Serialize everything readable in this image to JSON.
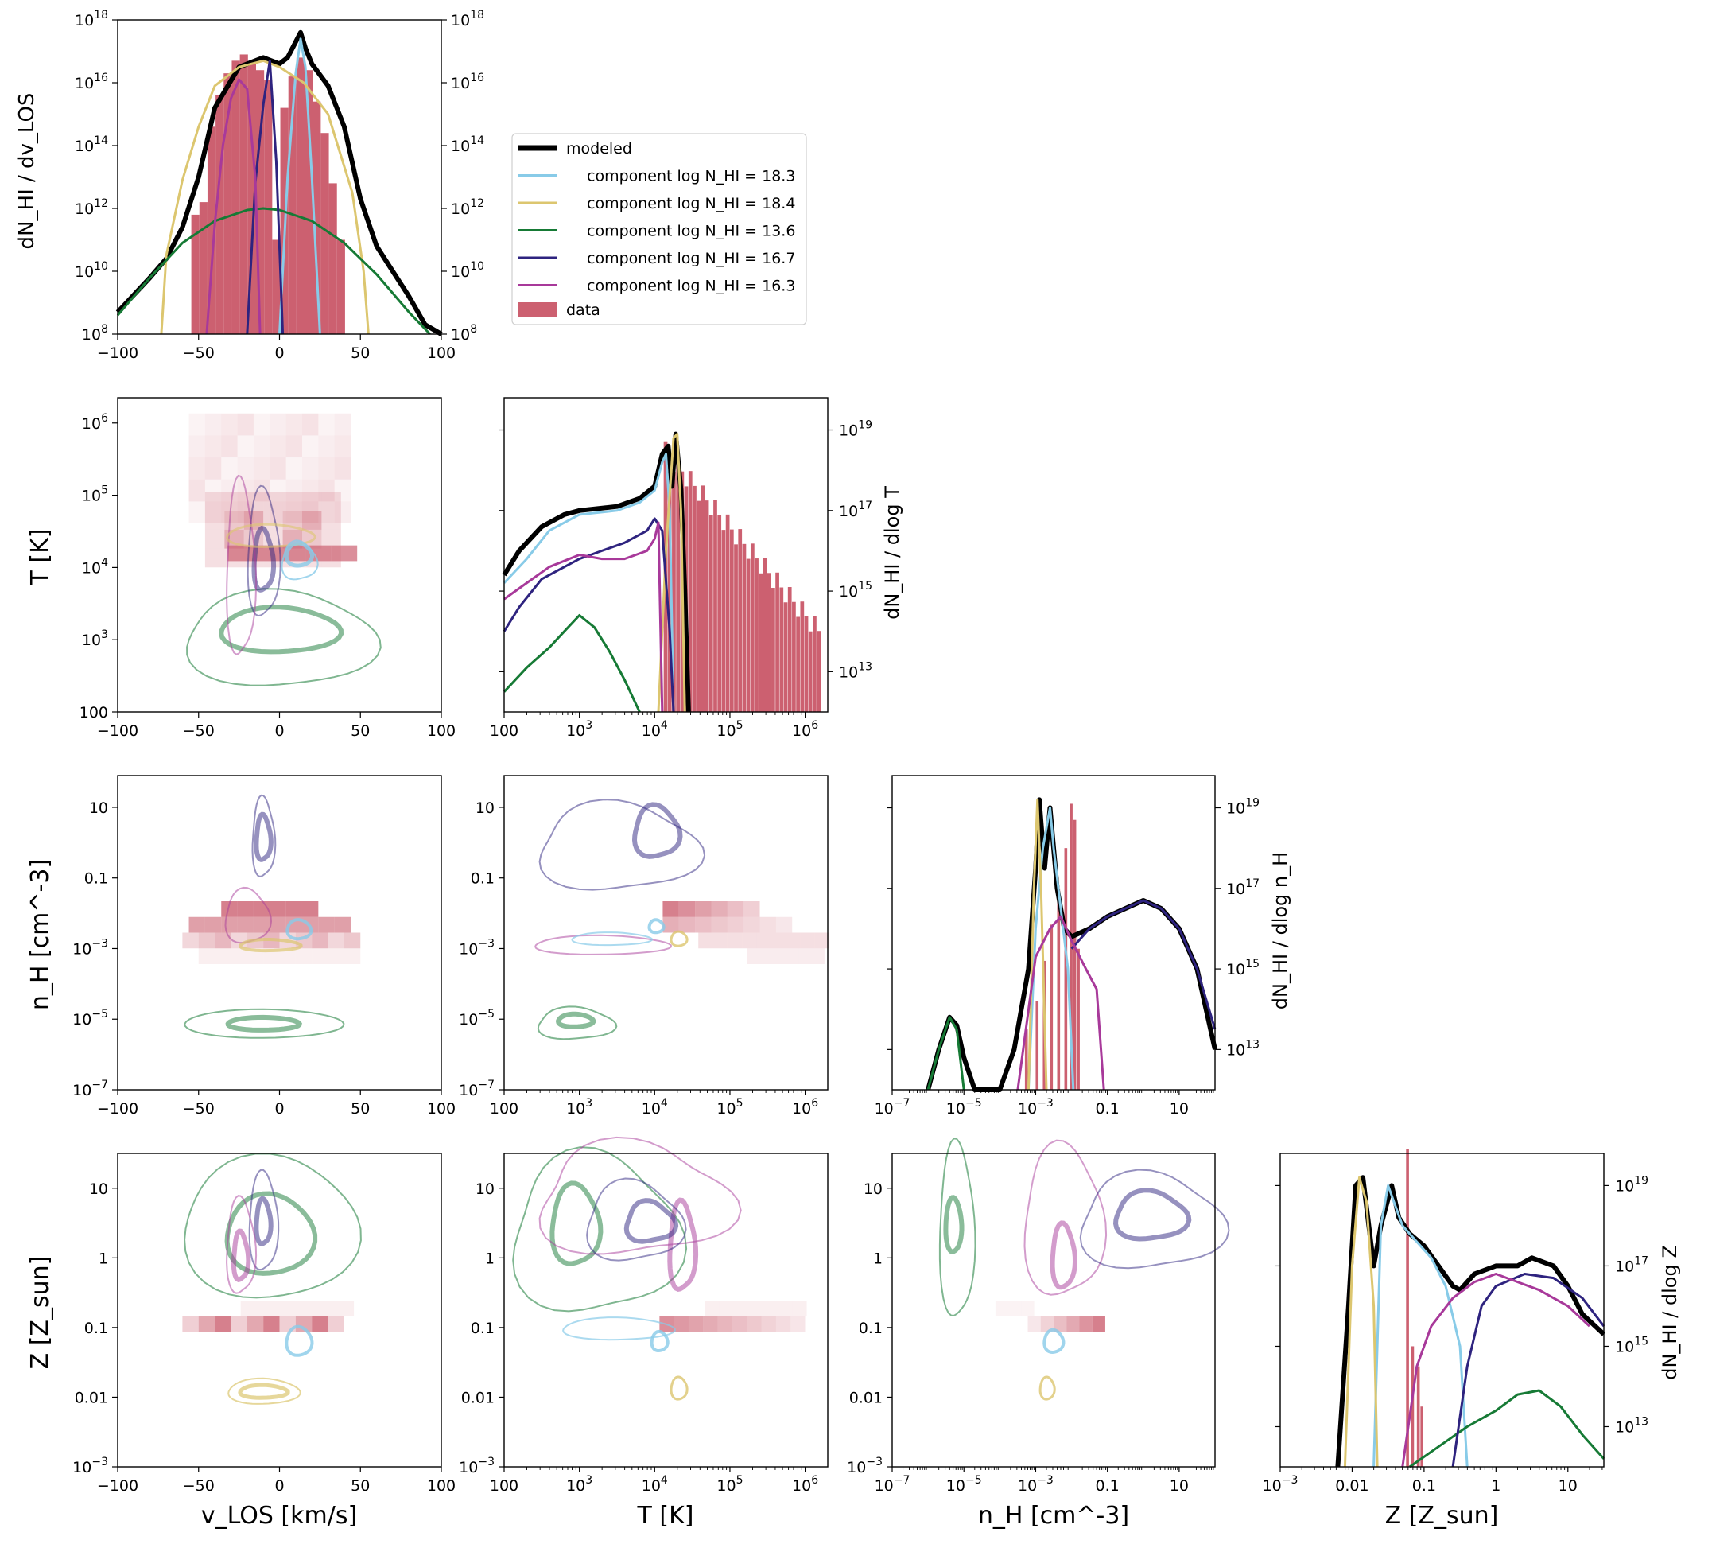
{
  "colors": {
    "modeled": "#000000",
    "comp1": "#88cbe8",
    "comp2": "#dcc66f",
    "comp3": "#167a35",
    "comp4": "#2e237f",
    "comp5": "#a8399a",
    "data": "#cc6070"
  },
  "legend": {
    "modeled": "modeled",
    "comp1": "component log N_HI = 18.3",
    "comp2": "component log N_HI = 18.4",
    "comp3": "component log N_HI = 13.6",
    "comp4": "component log N_HI = 16.7",
    "comp5": "component log N_HI = 16.3",
    "data": "data"
  },
  "axis_labels": {
    "dNdv": "dN_HI / dv_LOS",
    "dNdT": "dN_HI / dlog T",
    "dNdn": "dN_HI / dlog n_H",
    "dNdZ": "dN_HI / dlog Z",
    "T": "T [K]",
    "nH": "n_H [cm^-3]",
    "Z": "Z [Z_sun]",
    "vlos": "v_LOS [km/s]"
  },
  "chart_data": [
    {
      "type": "line",
      "panel": "v_LOS histogram",
      "xlim": [
        -100,
        100
      ],
      "ylim_log10": [
        8,
        18
      ],
      "x_ticks": [
        "-100",
        "-50",
        "0",
        "50",
        "100"
      ],
      "y_ticks": [
        "10^8",
        "10^10",
        "10^12",
        "10^14",
        "10^16",
        "10^18"
      ],
      "series": [
        {
          "name": "modeled",
          "x": [
            -100,
            -80,
            -70,
            -60,
            -50,
            -40,
            -25,
            -10,
            0,
            5,
            10,
            13,
            16,
            20,
            30,
            40,
            50,
            60,
            70,
            80,
            90,
            100
          ],
          "log_y": [
            8.7,
            9.8,
            10.4,
            11.4,
            13.0,
            15.2,
            16.5,
            16.8,
            16.6,
            16.8,
            17.3,
            17.6,
            17.1,
            16.6,
            15.9,
            14.6,
            12.3,
            10.8,
            10.0,
            9.2,
            8.3,
            7.6
          ]
        },
        {
          "name": "component log N_HI = 18.3",
          "x": [
            0,
            5,
            10,
            13,
            16,
            20,
            25
          ],
          "log_y": [
            8.0,
            13.0,
            16.3,
            17.4,
            16.5,
            13.0,
            8.0
          ]
        },
        {
          "name": "component log N_HI = 18.4",
          "x": [
            -73,
            -70,
            -60,
            -50,
            -40,
            -25,
            -10,
            0,
            15,
            30,
            45,
            52,
            55
          ],
          "log_y": [
            8.0,
            10.5,
            12.9,
            14.6,
            15.9,
            16.5,
            16.7,
            16.5,
            16.0,
            15.0,
            12.5,
            10.0,
            8.0
          ]
        },
        {
          "name": "component log N_HI = 13.6",
          "x": [
            -100,
            -80,
            -60,
            -40,
            -20,
            -10,
            0,
            20,
            40,
            60,
            80,
            93
          ],
          "log_y": [
            8.6,
            9.8,
            10.9,
            11.6,
            11.95,
            12.0,
            11.95,
            11.6,
            10.9,
            9.9,
            8.7,
            8.0
          ]
        },
        {
          "name": "component log N_HI = 16.7",
          "x": [
            -20,
            -15,
            -10,
            -6,
            -2,
            2
          ],
          "log_y": [
            8.0,
            12.8,
            15.3,
            16.7,
            13.5,
            8.0
          ]
        },
        {
          "name": "component log N_HI = 16.3",
          "x": [
            -45,
            -40,
            -35,
            -30,
            -25,
            -20,
            -15,
            -12
          ],
          "log_y": [
            8.0,
            11.5,
            14.0,
            15.5,
            16.1,
            15.8,
            13.0,
            8.0
          ]
        }
      ],
      "data_hist": {
        "name": "data",
        "x": [
          -52,
          -47,
          -42,
          -37,
          -32,
          -27,
          -22,
          -17,
          -12,
          -7,
          -2,
          3,
          8,
          13,
          18,
          23,
          28,
          33,
          38
        ],
        "log_y": [
          11.8,
          12.2,
          14.6,
          15.6,
          16.3,
          16.7,
          16.9,
          16.6,
          16.4,
          16.1,
          11.0,
          15.2,
          16.2,
          16.8,
          16.4,
          15.4,
          14.4,
          12.8,
          11.0
        ]
      }
    },
    {
      "type": "line",
      "panel": "T histogram",
      "xlim_log10": [
        2,
        6.3
      ],
      "ylim_log10": [
        12,
        19.8
      ],
      "x_ticks": [
        "100",
        "10^3",
        "10^4",
        "10^5",
        "10^6"
      ],
      "y_ticks": [
        "10^13",
        "10^15",
        "10^17",
        "10^19"
      ],
      "series": [
        {
          "name": "modeled",
          "log_x": [
            2.0,
            2.2,
            2.5,
            2.8,
            3.0,
            3.5,
            3.8,
            4.0,
            4.1,
            4.18,
            4.23,
            4.28,
            4.35,
            4.4,
            4.45
          ],
          "log_y": [
            15.4,
            16.0,
            16.6,
            16.9,
            17.0,
            17.1,
            17.3,
            17.6,
            18.4,
            18.6,
            17.6,
            18.9,
            17.5,
            15.0,
            12.0
          ]
        },
        {
          "name": "component log N_HI = 18.3",
          "log_x": [
            2.0,
            2.3,
            2.6,
            3.0,
            3.5,
            3.8,
            4.0,
            4.1,
            4.15,
            4.2,
            4.25
          ],
          "log_y": [
            15.2,
            15.8,
            16.5,
            16.9,
            17.0,
            17.2,
            17.5,
            18.2,
            18.4,
            17.0,
            12.0
          ]
        },
        {
          "name": "component log N_HI = 18.4",
          "log_x": [
            4.05,
            4.15,
            4.25,
            4.3,
            4.35,
            4.4
          ],
          "log_y": [
            12.0,
            16.0,
            18.8,
            18.9,
            17.0,
            12.0
          ]
        },
        {
          "name": "component log N_HI = 13.6",
          "log_x": [
            2.0,
            2.3,
            2.6,
            2.8,
            3.0,
            3.2,
            3.4,
            3.6,
            3.8
          ],
          "log_y": [
            12.5,
            13.1,
            13.6,
            14.0,
            14.4,
            14.1,
            13.5,
            12.8,
            12.0
          ]
        },
        {
          "name": "component log N_HI = 16.7",
          "log_x": [
            2.0,
            2.2,
            2.5,
            2.8,
            3.0,
            3.3,
            3.6,
            3.9,
            4.0,
            4.1,
            4.2,
            4.25
          ],
          "log_y": [
            14.0,
            14.6,
            15.3,
            15.6,
            15.8,
            16.0,
            16.2,
            16.5,
            16.8,
            16.5,
            14.0,
            12.0
          ]
        },
        {
          "name": "component log N_HI = 16.3",
          "log_x": [
            2.0,
            2.3,
            2.6,
            3.0,
            3.3,
            3.6,
            3.9,
            4.0,
            4.05,
            4.1
          ],
          "log_y": [
            14.8,
            15.2,
            15.6,
            15.9,
            15.8,
            15.8,
            16.0,
            16.3,
            16.7,
            12.0
          ]
        }
      ]
    },
    {
      "type": "line",
      "panel": "n_H histogram",
      "xlim_log10": [
        -7,
        2
      ],
      "ylim_log10": [
        12,
        19.8
      ],
      "x_ticks": [
        "10^-7",
        "10^-5",
        "10^-3",
        "0.1",
        "10"
      ],
      "y_ticks": [
        "10^13",
        "10^15",
        "10^17",
        "10^19"
      ],
      "series": [
        {
          "name": "modeled",
          "log_x": [
            -6.0,
            -5.7,
            -5.4,
            -5.2,
            -5.0,
            -4.7,
            -4.4,
            -4.0,
            -3.6,
            -3.2,
            -3.0,
            -2.9,
            -2.75,
            -2.6,
            -2.4,
            -2.2,
            -2.0,
            -1.5,
            -1.0,
            -0.5,
            0.0,
            0.5,
            1.0,
            1.5,
            2.0
          ],
          "log_y": [
            12.0,
            13.0,
            13.8,
            13.6,
            12.8,
            12.0,
            12.0,
            12.0,
            13.0,
            15.0,
            17.5,
            19.2,
            17.5,
            19.0,
            17.0,
            16.0,
            15.8,
            16.0,
            16.3,
            16.5,
            16.7,
            16.5,
            16.0,
            15.0,
            13.0
          ]
        },
        {
          "name": "component log N_HI = 18.3",
          "log_x": [
            -3.2,
            -3.0,
            -2.8,
            -2.6,
            -2.5,
            -2.3,
            -2.1,
            -1.95
          ],
          "log_y": [
            12.0,
            16.0,
            18.0,
            19.0,
            18.0,
            16.5,
            15.0,
            12.0
          ]
        },
        {
          "name": "component log N_HI = 18.4",
          "log_x": [
            -3.2,
            -3.05,
            -2.95,
            -2.85,
            -2.7
          ],
          "log_y": [
            12.0,
            17.0,
            19.2,
            17.0,
            12.0
          ]
        },
        {
          "name": "component log N_HI = 13.6",
          "log_x": [
            -6.0,
            -5.7,
            -5.4,
            -5.2,
            -5.0
          ],
          "log_y": [
            12.0,
            13.0,
            13.8,
            13.5,
            12.0
          ]
        },
        {
          "name": "component log N_HI = 16.7",
          "log_x": [
            -2.0,
            -1.5,
            -1.0,
            -0.5,
            0.0,
            0.5,
            1.0,
            1.5,
            2.0
          ],
          "log_y": [
            15.5,
            16.0,
            16.3,
            16.5,
            16.7,
            16.5,
            16.0,
            15.0,
            13.5
          ]
        },
        {
          "name": "component log N_HI = 16.3",
          "log_x": [
            -3.5,
            -3.0,
            -2.6,
            -2.3,
            -2.0,
            -1.6,
            -1.3,
            -1.1
          ],
          "log_y": [
            12.0,
            15.3,
            16.0,
            16.3,
            15.7,
            15.0,
            14.5,
            12.0
          ]
        }
      ]
    },
    {
      "type": "line",
      "panel": "Z histogram",
      "xlim_log10": [
        -3,
        1.5
      ],
      "ylim_log10": [
        12,
        19.8
      ],
      "x_ticks": [
        "10^-3",
        "0.01",
        "0.1",
        "1",
        "10"
      ],
      "y_ticks": [
        "10^13",
        "10^15",
        "10^17",
        "10^19"
      ],
      "series": [
        {
          "name": "modeled",
          "log_x": [
            -2.2,
            -2.05,
            -1.95,
            -1.85,
            -1.7,
            -1.6,
            -1.45,
            -1.35,
            -1.2,
            -1.0,
            -0.8,
            -0.6,
            -0.5,
            -0.3,
            0.0,
            0.3,
            0.5,
            0.8,
            1.0,
            1.2,
            1.5
          ],
          "log_y": [
            12.0,
            16.0,
            19.0,
            19.2,
            17.0,
            18.0,
            19.0,
            18.2,
            17.8,
            17.5,
            17.0,
            16.5,
            16.4,
            16.8,
            17.0,
            17.0,
            17.2,
            17.0,
            16.5,
            15.8,
            15.3
          ]
        },
        {
          "name": "component log N_HI = 18.3",
          "log_x": [
            -1.7,
            -1.6,
            -1.5,
            -1.4,
            -1.3,
            -1.1,
            -0.9,
            -0.7,
            -0.5,
            -0.4
          ],
          "log_y": [
            12.0,
            18.0,
            19.0,
            18.5,
            18.0,
            17.6,
            17.2,
            16.5,
            15.0,
            12.0
          ]
        },
        {
          "name": "component log N_HI = 18.4",
          "log_x": [
            -2.1,
            -2.0,
            -1.9,
            -1.8,
            -1.7,
            -1.65
          ],
          "log_y": [
            12.0,
            17.0,
            19.2,
            18.6,
            16.0,
            12.0
          ]
        },
        {
          "name": "component log N_HI = 13.6",
          "log_x": [
            -1.2,
            -0.8,
            -0.4,
            0.0,
            0.3,
            0.6,
            0.9,
            1.2,
            1.5
          ],
          "log_y": [
            12.0,
            12.5,
            13.0,
            13.4,
            13.8,
            13.9,
            13.5,
            12.8,
            12.2
          ]
        },
        {
          "name": "component log N_HI = 16.7",
          "log_x": [
            -0.6,
            -0.4,
            -0.2,
            0.0,
            0.4,
            0.8,
            1.2,
            1.5
          ],
          "log_y": [
            12.0,
            14.5,
            16.0,
            16.5,
            16.8,
            16.7,
            16.2,
            15.5
          ]
        },
        {
          "name": "component log N_HI = 16.3",
          "log_x": [
            -1.3,
            -1.1,
            -0.9,
            -0.6,
            -0.3,
            0.0,
            0.3,
            0.6,
            1.0,
            1.3
          ],
          "log_y": [
            12.0,
            14.5,
            15.5,
            16.2,
            16.6,
            16.8,
            16.6,
            16.4,
            16.0,
            15.5
          ]
        }
      ]
    }
  ],
  "corner_tick_labels": {
    "vlos": [
      "-100",
      "-50",
      "0",
      "50",
      "100"
    ],
    "T": [
      "100",
      "10^3",
      "10^4",
      "10^5",
      "10^6"
    ],
    "nH": [
      "10^-7",
      "10^-5",
      "10^-3",
      "0.1",
      "10"
    ],
    "Z": [
      "10^-3",
      "0.01",
      "0.1",
      "1",
      "10"
    ]
  }
}
